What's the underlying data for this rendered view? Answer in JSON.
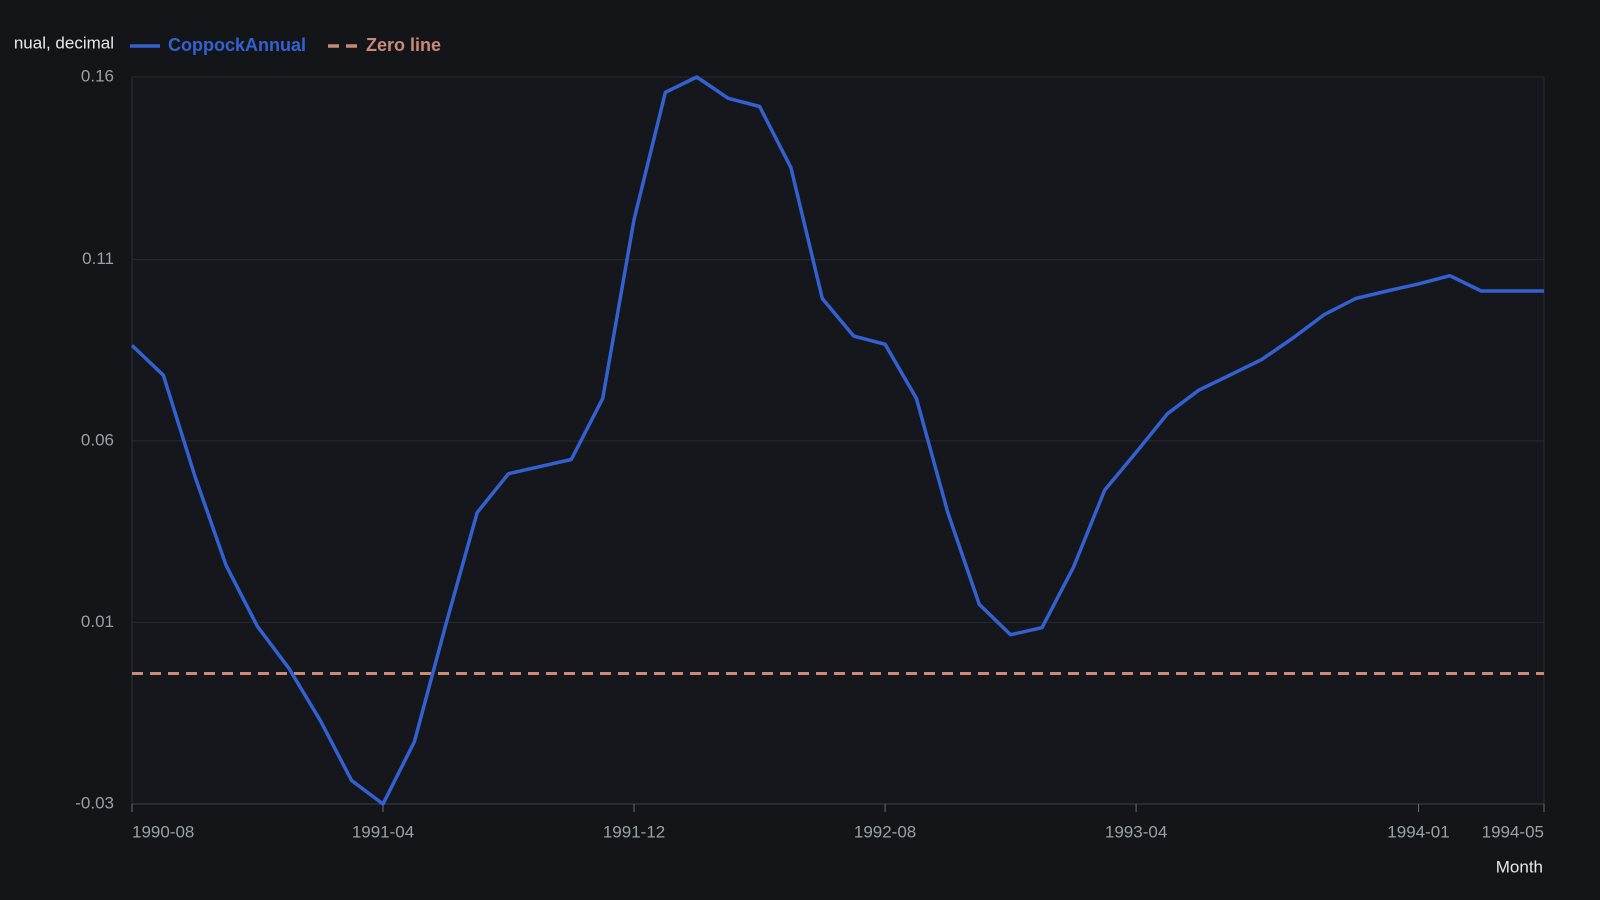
{
  "chart_data": {
    "type": "line",
    "y_label": "nual, decimal",
    "x_label": "Month",
    "x": [
      "1990-08",
      "1990-09",
      "1990-10",
      "1990-11",
      "1990-12",
      "1991-01",
      "1991-02",
      "1991-03",
      "1991-04",
      "1991-05",
      "1991-06",
      "1991-07",
      "1991-08",
      "1991-09",
      "1991-10",
      "1991-11",
      "1991-12",
      "1992-01",
      "1992-02",
      "1992-03",
      "1992-04",
      "1992-05",
      "1992-06",
      "1992-07",
      "1992-08",
      "1992-09",
      "1992-10",
      "1992-11",
      "1992-12",
      "1993-01",
      "1993-02",
      "1993-03",
      "1993-04",
      "1993-05",
      "1993-06",
      "1993-07",
      "1993-08",
      "1993-09",
      "1993-10",
      "1993-11",
      "1993-12",
      "1994-01",
      "1994-02",
      "1994-03",
      "1994-04",
      "1994-05"
    ],
    "series": [
      {
        "name": "CoppockAnnual",
        "color": "#3461d1",
        "values": [
          0.088,
          0.08,
          0.053,
          0.029,
          0.0126,
          0.0014,
          -0.0126,
          -0.0287,
          -0.035,
          -0.0183,
          0.0131,
          0.0432,
          0.0536,
          0.0555,
          0.0574,
          0.0738,
          0.1217,
          0.1559,
          0.16,
          0.1543,
          0.1521,
          0.1357,
          0.1006,
          0.0905,
          0.0883,
          0.0738,
          0.0432,
          0.0186,
          0.0104,
          0.0123,
          0.0284,
          0.0492,
          0.0593,
          0.0697,
          0.076,
          0.0801,
          0.0842,
          0.09,
          0.0963,
          0.1006,
          0.1026,
          0.1045,
          0.1067,
          0.1026,
          0.1026,
          0.1026
        ]
      }
    ],
    "reference_lines": [
      {
        "name": "Zero line",
        "value": 0,
        "color": "#c98a78",
        "dash": true
      }
    ],
    "ylim": [
      -0.035,
      0.16
    ],
    "yticks": [
      {
        "value": -0.035,
        "label": "-0.03"
      },
      {
        "value": 0.0137,
        "label": "0.01"
      },
      {
        "value": 0.0624,
        "label": "0.06"
      },
      {
        "value": 0.111,
        "label": "0.11"
      },
      {
        "value": 0.16,
        "label": "0.16"
      }
    ],
    "xticks": [
      "1990-08",
      "1991-04",
      "1991-12",
      "1992-08",
      "1993-04",
      "1994-01",
      "1994-05"
    ],
    "grid": true
  }
}
